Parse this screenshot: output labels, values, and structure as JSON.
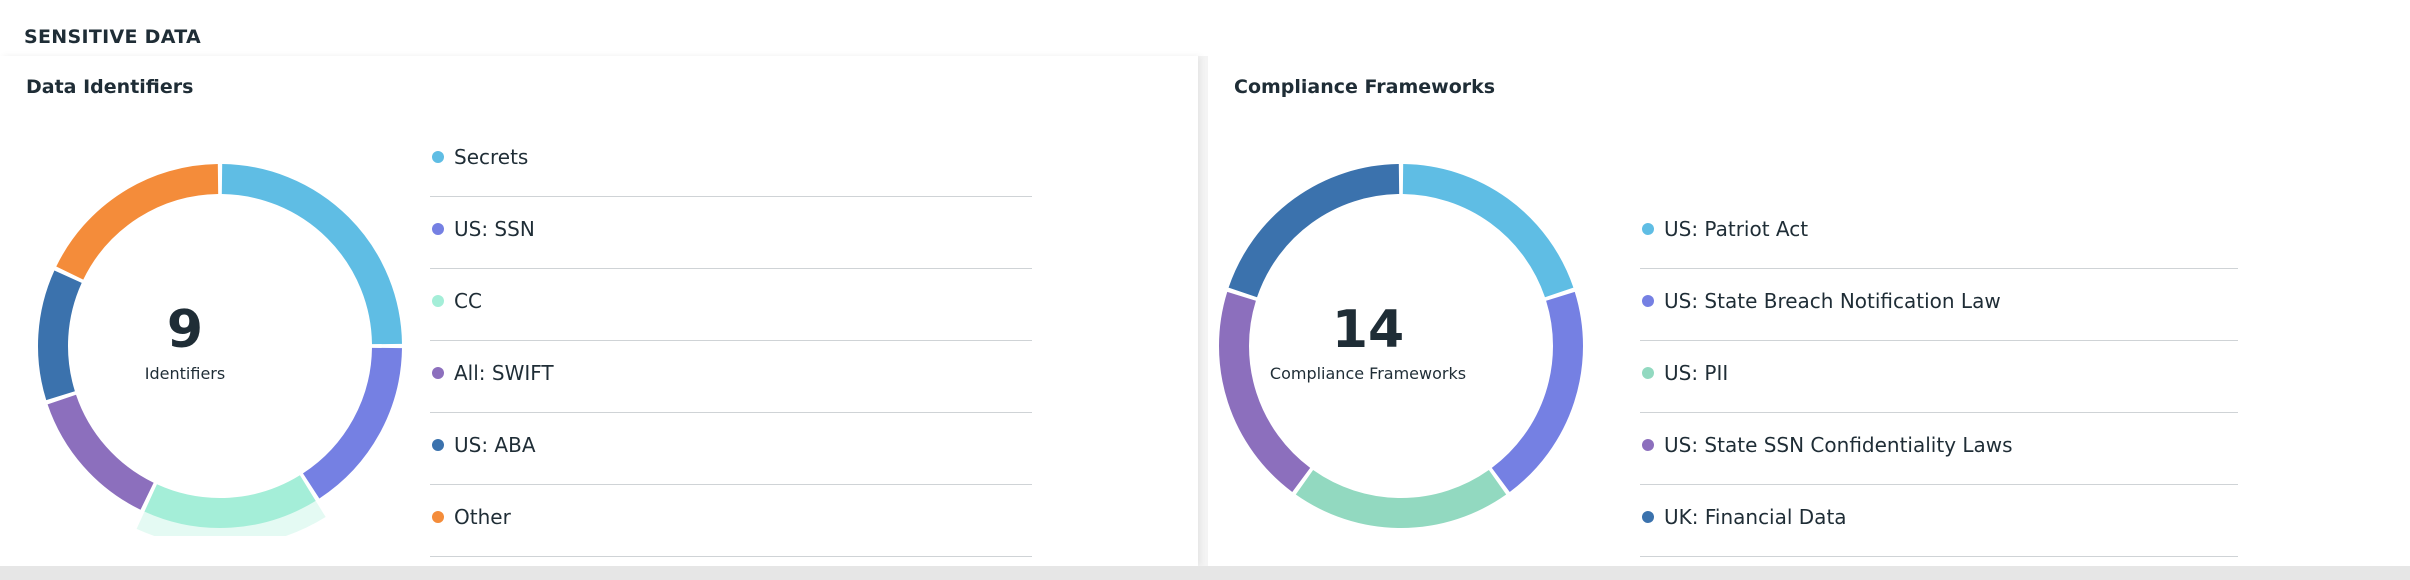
{
  "section": {
    "title": "SENSITIVE DATA"
  },
  "data_identifiers": {
    "title": "Data Identifiers",
    "count": "9",
    "count_label": "Identifiers",
    "items": [
      {
        "label": "Secrets",
        "color": "#5fbde4",
        "share": 0.25
      },
      {
        "label": "US: SSN",
        "color": "#7580e3",
        "share": 0.16
      },
      {
        "label": "CC",
        "color": "#a4eed8",
        "share": 0.16
      },
      {
        "label": "All: SWIFT",
        "color": "#8c6fbd",
        "share": 0.13
      },
      {
        "label": "US: ABA",
        "color": "#3b72ad",
        "share": 0.12
      },
      {
        "label": "Other",
        "color": "#f48c3a",
        "share": 0.18
      }
    ],
    "highlighted_item": "CC"
  },
  "compliance_frameworks": {
    "title": "Compliance Frameworks",
    "count": "14",
    "count_label": "Compliance Frameworks",
    "items": [
      {
        "label": "US: Patriot Act",
        "color": "#5fbde4",
        "share": 0.2
      },
      {
        "label": "US: State Breach Notification Law",
        "color": "#7580e3",
        "share": 0.2
      },
      {
        "label": "US: PII",
        "color": "#92d9c0",
        "share": 0.2
      },
      {
        "label": "US: State SSN Confidentiality Laws",
        "color": "#8c6fbd",
        "share": 0.2
      },
      {
        "label": "UK: Financial Data",
        "color": "#3b72ad",
        "share": 0.2
      }
    ]
  }
}
